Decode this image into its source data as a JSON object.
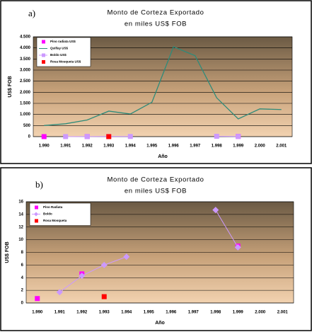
{
  "chart_data": [
    {
      "type": "line",
      "label": "a)",
      "title": "Monto de Corteza Exportado",
      "subtitle": "en miles US$ FOB",
      "x_label": "Año",
      "y_label": "US$ FOB",
      "categories": [
        "1.990",
        "1.991",
        "1.992",
        "1.993",
        "1.994",
        "1.995",
        "1.996",
        "1.997",
        "1.998",
        "1.999",
        "2.000",
        "2.001"
      ],
      "ylim": [
        0,
        4500
      ],
      "yticks": [
        0,
        500,
        {
          "value": 1000,
          "label": "1.000"
        },
        {
          "value": 1500,
          "label": "1.500"
        },
        {
          "value": 2000,
          "label": "2.000"
        },
        {
          "value": 2500,
          "label": "2.500"
        },
        {
          "value": 3000,
          "label": "3.000"
        },
        {
          "value": 3500,
          "label": "3.500"
        },
        {
          "value": 4000,
          "label": "4.000"
        },
        {
          "value": 4500,
          "label": "4.500"
        }
      ],
      "grid": true,
      "series": [
        {
          "name": "Pino radiata US$",
          "color": "#ff00ff",
          "marker": "square",
          "line": false,
          "values": [
            0.7,
            null,
            4.6,
            null,
            null,
            null,
            null,
            null,
            null,
            9,
            null,
            null
          ]
        },
        {
          "name": "Quillay US$",
          "color": "#2e8b7a",
          "marker": "none",
          "line": true,
          "values": [
            500,
            580,
            750,
            1150,
            1020,
            1550,
            4050,
            3650,
            1750,
            800,
            1250,
            1220
          ]
        },
        {
          "name": "Boldo US$",
          "color": "#cc99ff",
          "marker": "square",
          "line": true,
          "values": [
            null,
            1.7,
            4.3,
            6,
            7.3,
            null,
            null,
            null,
            14.7,
            8.8,
            null,
            null
          ]
        },
        {
          "name": "Rosa Mosqueta US$",
          "color": "#ff0000",
          "marker": "square",
          "line": false,
          "values": [
            null,
            null,
            null,
            1,
            null,
            null,
            null,
            null,
            null,
            null,
            null,
            null
          ]
        }
      ]
    },
    {
      "type": "line",
      "label": "b)",
      "title": "Monto de Corteza Exportado",
      "subtitle": "en miles US$ FOB",
      "x_label": "Año",
      "y_label": "US$ FOB",
      "categories": [
        "1.990",
        "1.991",
        "1.992",
        "1.993",
        "1.994",
        "1.995",
        "1.996",
        "1.997",
        "1.998",
        "1.999",
        "2.000",
        "2.001"
      ],
      "ylim": [
        0,
        16
      ],
      "yticks": [
        0,
        2,
        4,
        6,
        8,
        10,
        12,
        14,
        16
      ],
      "grid": true,
      "series": [
        {
          "name": "Pino Radiata",
          "color": "#ff00ff",
          "marker": "square",
          "line": false,
          "values": [
            0.7,
            null,
            4.6,
            null,
            null,
            null,
            null,
            null,
            null,
            9,
            null,
            null
          ]
        },
        {
          "name": "Boldo",
          "color": "#cc99ff",
          "marker": "diamond",
          "line": true,
          "values": [
            null,
            1.7,
            4.3,
            6,
            7.3,
            null,
            null,
            null,
            14.7,
            8.8,
            null,
            null
          ]
        },
        {
          "name": "Rosa Mosqueta",
          "color": "#ff0000",
          "marker": "square",
          "line": false,
          "values": [
            null,
            null,
            null,
            1,
            null,
            null,
            null,
            null,
            null,
            null,
            null,
            null
          ]
        }
      ]
    }
  ]
}
